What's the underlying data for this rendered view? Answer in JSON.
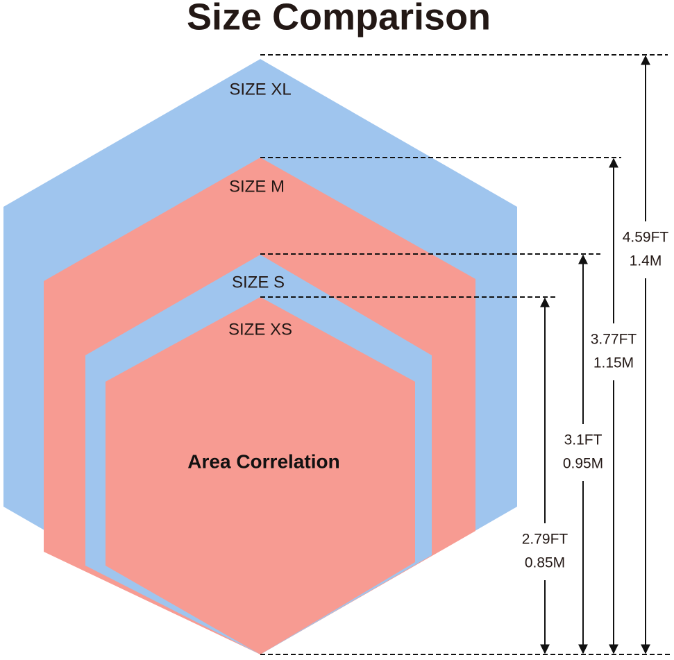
{
  "title": "Size Comparison",
  "center_label": "Area Correlation",
  "sizes": [
    {
      "label": "SIZE XL",
      "feet": "4.59FT",
      "meters": "1.4M"
    },
    {
      "label": "SIZE M",
      "feet": "3.77FT",
      "meters": "1.15M"
    },
    {
      "label": "SIZE S",
      "feet": "3.1FT",
      "meters": "0.95M"
    },
    {
      "label": "SIZE XS",
      "feet": "2.79FT",
      "meters": "0.85M"
    }
  ]
}
